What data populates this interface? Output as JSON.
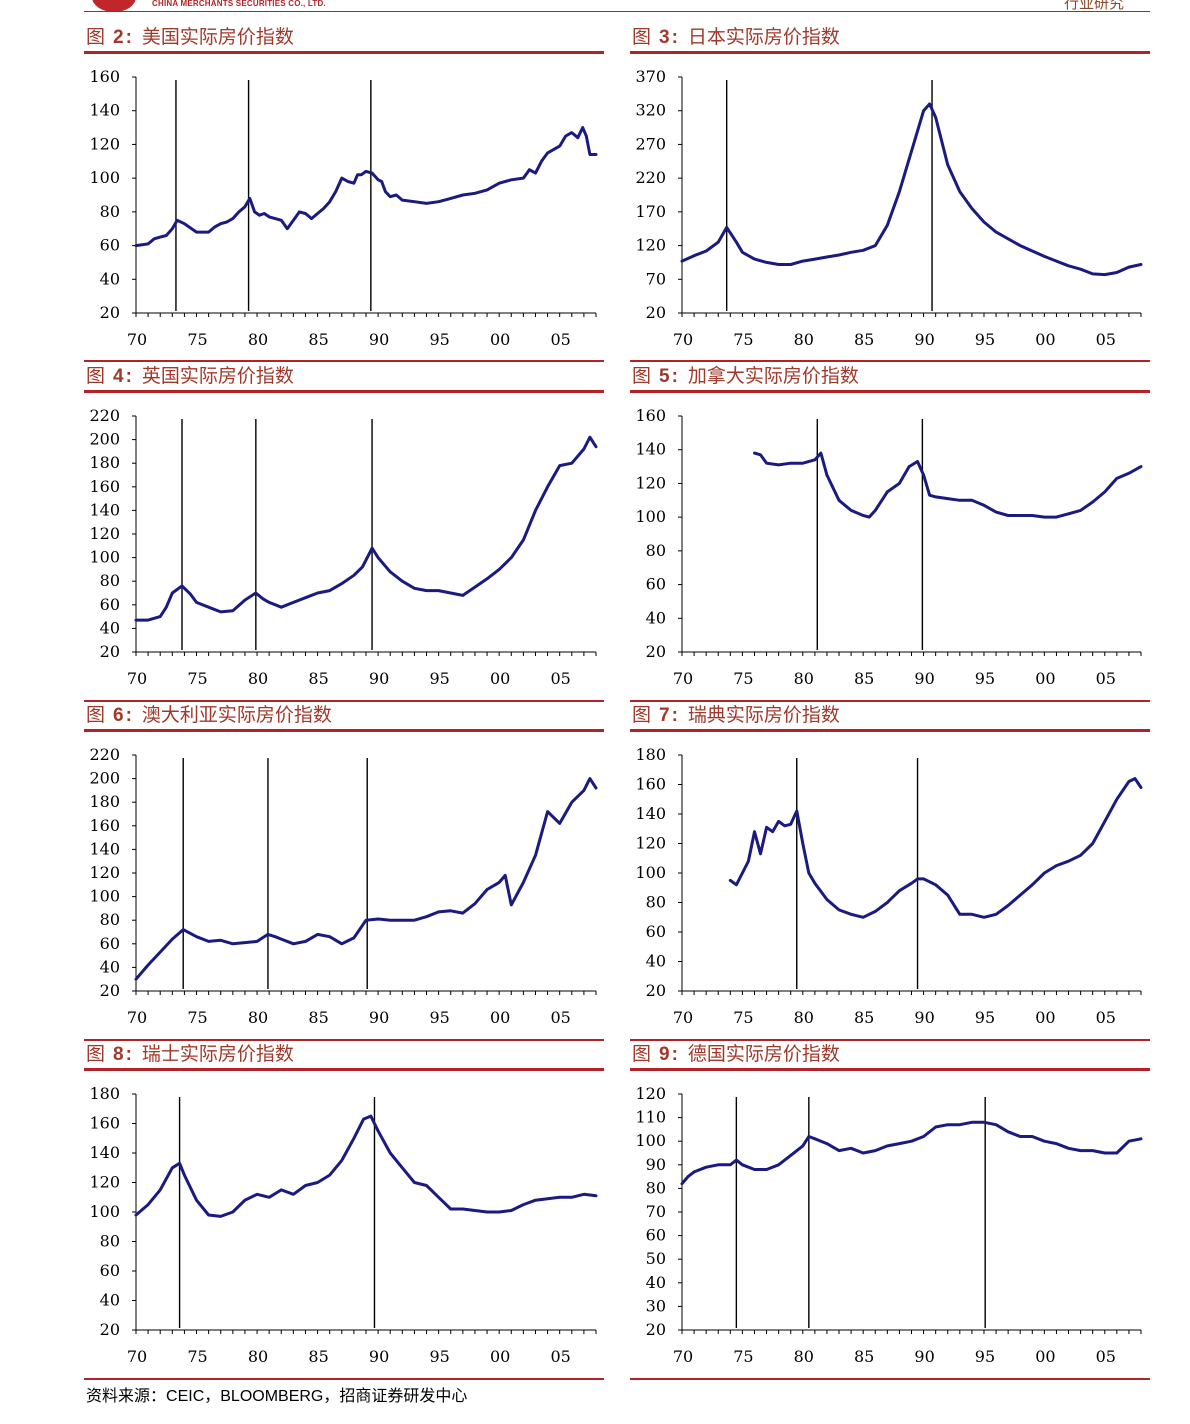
{
  "header": {
    "company": "CHINA MERCHANTS SECURITIES CO., LTD.",
    "section": "行业研究"
  },
  "source": {
    "label": "资料来源：",
    "text": "CEIC，BLOOMBERG，招商证券研发中心"
  },
  "colors": {
    "line": "#1a1a80",
    "accent": "#b22227",
    "title": "#a0392b"
  },
  "chart_data": [
    {
      "id": "us",
      "type": "line",
      "fig_prefix": "图",
      "fig_num": "2",
      "title": "美国实际房价指数",
      "ylim": [
        20,
        160
      ],
      "yticks": [
        20,
        40,
        60,
        80,
        100,
        120,
        140,
        160
      ],
      "xlim": [
        1970,
        2008
      ],
      "xticks": [
        1970,
        1975,
        1980,
        1985,
        1990,
        1995,
        2000,
        2005
      ],
      "xticklabels": [
        "70",
        "75",
        "80",
        "85",
        "90",
        "95",
        "00",
        "05"
      ],
      "vlines": [
        1973.3,
        1979.3,
        1989.4
      ],
      "series": [
        {
          "x": [
            1970,
            1971,
            1971.5,
            1972,
            1972.5,
            1973,
            1973.4,
            1974,
            1975,
            1976,
            1976.5,
            1977,
            1977.5,
            1978,
            1978.5,
            1979,
            1979.4,
            1979.8,
            1980.2,
            1980.6,
            1981,
            1981.5,
            1982,
            1982.5,
            1983,
            1983.5,
            1984,
            1984.5,
            1985,
            1985.5,
            1986,
            1986.5,
            1987,
            1987.5,
            1988,
            1988.3,
            1988.6,
            1989,
            1989.5,
            1990,
            1990.3,
            1990.6,
            1991,
            1991.5,
            1992,
            1993,
            1994,
            1995,
            1996,
            1997,
            1998,
            1999,
            2000,
            2001,
            2002,
            2002.5,
            2003,
            2003.5,
            2004,
            2005,
            2005.5,
            2006,
            2006.5,
            2006.9,
            2007.2,
            2007.5,
            2008
          ],
          "y": [
            60,
            61,
            64,
            65,
            66,
            70,
            75,
            73,
            68,
            68,
            71,
            73,
            74,
            76,
            80,
            83,
            88,
            80,
            78,
            79,
            77,
            76,
            75,
            70,
            75,
            80,
            79,
            76,
            79,
            82,
            86,
            92,
            100,
            98,
            97,
            102,
            102,
            104,
            103,
            99,
            98,
            92,
            89,
            90,
            87,
            86,
            85,
            86,
            88,
            90,
            91,
            93,
            97,
            99,
            100,
            105,
            103,
            110,
            115,
            119,
            125,
            127,
            124,
            130,
            125,
            114,
            114
          ]
        }
      ]
    },
    {
      "id": "jp",
      "type": "line",
      "fig_prefix": "图",
      "fig_num": "3",
      "title": "日本实际房价指数",
      "ylim": [
        20,
        370
      ],
      "yticks": [
        20,
        70,
        120,
        170,
        220,
        270,
        320,
        370
      ],
      "xlim": [
        1970,
        2008
      ],
      "xticks": [
        1970,
        1975,
        1980,
        1985,
        1990,
        1995,
        2000,
        2005
      ],
      "xticklabels": [
        "70",
        "75",
        "80",
        "85",
        "90",
        "95",
        "00",
        "05"
      ],
      "vlines": [
        1973.7,
        1990.7
      ],
      "series": [
        {
          "x": [
            1970,
            1971,
            1972,
            1973,
            1973.7,
            1974.5,
            1975,
            1976,
            1977,
            1978,
            1979,
            1980,
            1981,
            1982,
            1983,
            1984,
            1985,
            1986,
            1987,
            1988,
            1989,
            1990,
            1990.5,
            1991,
            1992,
            1993,
            1994,
            1995,
            1996,
            1997,
            1998,
            1999,
            2000,
            2001,
            2002,
            2003,
            2004,
            2005,
            2006,
            2007,
            2008
          ],
          "y": [
            97,
            105,
            112,
            125,
            147,
            125,
            110,
            100,
            95,
            92,
            92,
            97,
            100,
            103,
            106,
            110,
            113,
            120,
            150,
            200,
            260,
            320,
            330,
            310,
            240,
            200,
            175,
            155,
            140,
            130,
            120,
            112,
            104,
            97,
            90,
            85,
            78,
            77,
            80,
            88,
            92
          ]
        }
      ]
    },
    {
      "id": "uk",
      "type": "line",
      "fig_prefix": "图",
      "fig_num": "4",
      "title": "英国实际房价指数",
      "ylim": [
        20,
        220
      ],
      "yticks": [
        20,
        40,
        60,
        80,
        100,
        120,
        140,
        160,
        180,
        200,
        220
      ],
      "xlim": [
        1970,
        2008
      ],
      "xticks": [
        1970,
        1975,
        1980,
        1985,
        1990,
        1995,
        2000,
        2005
      ],
      "xticklabels": [
        "70",
        "75",
        "80",
        "85",
        "90",
        "95",
        "00",
        "05"
      ],
      "vlines": [
        1973.8,
        1979.9,
        1989.5
      ],
      "series": [
        {
          "x": [
            1970,
            1971,
            1972,
            1972.5,
            1973,
            1973.8,
            1974.5,
            1975,
            1976,
            1977,
            1978,
            1979,
            1979.9,
            1980.5,
            1981,
            1982,
            1983,
            1984,
            1985,
            1986,
            1987,
            1988,
            1988.7,
            1989.5,
            1990,
            1991,
            1992,
            1993,
            1994,
            1995,
            1996,
            1997,
            1998,
            1999,
            2000,
            2001,
            2002,
            2003,
            2004,
            2005,
            2006,
            2007,
            2007.5,
            2008
          ],
          "y": [
            47,
            47,
            50,
            58,
            70,
            76,
            69,
            62,
            58,
            54,
            55,
            64,
            70,
            65,
            62,
            58,
            62,
            66,
            70,
            72,
            78,
            85,
            92,
            108,
            100,
            88,
            80,
            74,
            72,
            72,
            70,
            68,
            75,
            82,
            90,
            100,
            115,
            140,
            160,
            178,
            180,
            192,
            202,
            194
          ]
        }
      ]
    },
    {
      "id": "ca",
      "type": "line",
      "fig_prefix": "图",
      "fig_num": "5",
      "title": "加拿大实际房价指数",
      "ylim": [
        20,
        160
      ],
      "yticks": [
        20,
        40,
        60,
        80,
        100,
        120,
        140,
        160
      ],
      "xlim": [
        1970,
        2008
      ],
      "xticks": [
        1970,
        1975,
        1980,
        1985,
        1990,
        1995,
        2000,
        2005
      ],
      "xticklabels": [
        "70",
        "75",
        "80",
        "85",
        "90",
        "95",
        "00",
        "05"
      ],
      "vlines": [
        1981.2,
        1989.9
      ],
      "series": [
        {
          "x": [
            1976,
            1976.5,
            1977,
            1978,
            1979,
            1980,
            1981,
            1981.5,
            1982,
            1983,
            1984,
            1985,
            1985.5,
            1986,
            1987,
            1988,
            1988.8,
            1989.5,
            1990,
            1990.5,
            1991,
            1992,
            1993,
            1994,
            1995,
            1996,
            1997,
            1998,
            1999,
            2000,
            2001,
            2002,
            2003,
            2004,
            2005,
            2006,
            2007,
            2008
          ],
          "y": [
            138,
            137,
            132,
            131,
            132,
            132,
            134,
            138,
            125,
            110,
            104,
            101,
            100,
            104,
            115,
            120,
            130,
            133,
            125,
            113,
            112,
            111,
            110,
            110,
            107,
            103,
            101,
            101,
            101,
            100,
            100,
            102,
            104,
            109,
            115,
            123,
            126,
            130
          ]
        }
      ]
    },
    {
      "id": "au",
      "type": "line",
      "fig_prefix": "图",
      "fig_num": "6",
      "title": "澳大利亚实际房价指数",
      "ylim": [
        20,
        220
      ],
      "yticks": [
        20,
        40,
        60,
        80,
        100,
        120,
        140,
        160,
        180,
        200,
        220
      ],
      "xlim": [
        1970,
        2008
      ],
      "xticks": [
        1970,
        1975,
        1980,
        1985,
        1990,
        1995,
        2000,
        2005
      ],
      "xticklabels": [
        "70",
        "75",
        "80",
        "85",
        "90",
        "95",
        "00",
        "05"
      ],
      "vlines": [
        1973.9,
        1980.9,
        1989.1
      ],
      "series": [
        {
          "x": [
            1970,
            1971,
            1972,
            1973,
            1973.9,
            1975,
            1976,
            1977,
            1978,
            1979,
            1980,
            1980.9,
            1981.5,
            1982,
            1983,
            1984,
            1985,
            1986,
            1987,
            1988,
            1989,
            1990,
            1991,
            1992,
            1993,
            1994,
            1995,
            1996,
            1997,
            1998,
            1999,
            2000,
            2000.5,
            2001,
            2002,
            2003,
            2004,
            2005,
            2006,
            2007,
            2007.5,
            2008
          ],
          "y": [
            30,
            42,
            53,
            64,
            72,
            66,
            62,
            63,
            60,
            61,
            62,
            68,
            66,
            64,
            60,
            62,
            68,
            66,
            60,
            65,
            80,
            81,
            80,
            80,
            80,
            83,
            87,
            88,
            86,
            94,
            106,
            112,
            118,
            93,
            112,
            135,
            172,
            162,
            180,
            190,
            200,
            192
          ]
        }
      ]
    },
    {
      "id": "se",
      "type": "line",
      "fig_prefix": "图",
      "fig_num": "7",
      "title": "瑞典实际房价指数",
      "ylim": [
        20,
        180
      ],
      "yticks": [
        20,
        40,
        60,
        80,
        100,
        120,
        140,
        160,
        180
      ],
      "xlim": [
        1970,
        2008
      ],
      "xticks": [
        1970,
        1975,
        1980,
        1985,
        1990,
        1995,
        2000,
        2005
      ],
      "xticklabels": [
        "70",
        "75",
        "80",
        "85",
        "90",
        "95",
        "00",
        "05"
      ],
      "vlines": [
        1979.5,
        1989.5
      ],
      "series": [
        {
          "x": [
            1974,
            1974.5,
            1975,
            1975.5,
            1976,
            1976.5,
            1977,
            1977.5,
            1978,
            1978.5,
            1979,
            1979.5,
            1980,
            1980.5,
            1981,
            1982,
            1983,
            1984,
            1985,
            1986,
            1987,
            1988,
            1989,
            1989.5,
            1990,
            1991,
            1992,
            1993,
            1994,
            1995,
            1996,
            1997,
            1998,
            1999,
            2000,
            2001,
            2002,
            2003,
            2004,
            2005,
            2006,
            2007,
            2007.5,
            2008
          ],
          "y": [
            95,
            92,
            100,
            108,
            128,
            113,
            131,
            128,
            135,
            132,
            133,
            142,
            120,
            100,
            93,
            82,
            75,
            72,
            70,
            74,
            80,
            88,
            93,
            96,
            96,
            92,
            85,
            72,
            72,
            70,
            72,
            78,
            85,
            92,
            100,
            105,
            108,
            112,
            120,
            135,
            150,
            162,
            164,
            158
          ]
        }
      ]
    },
    {
      "id": "ch",
      "type": "line",
      "fig_prefix": "图",
      "fig_num": "8",
      "title": "瑞士实际房价指数",
      "ylim": [
        20,
        180
      ],
      "yticks": [
        20,
        40,
        60,
        80,
        100,
        120,
        140,
        160,
        180
      ],
      "xlim": [
        1970,
        2008
      ],
      "xticks": [
        1970,
        1975,
        1980,
        1985,
        1990,
        1995,
        2000,
        2005
      ],
      "xticklabels": [
        "70",
        "75",
        "80",
        "85",
        "90",
        "95",
        "00",
        "05"
      ],
      "vlines": [
        1973.6,
        1989.7
      ],
      "series": [
        {
          "x": [
            1970,
            1971,
            1972,
            1973,
            1973.6,
            1974,
            1975,
            1976,
            1977,
            1978,
            1979,
            1980,
            1981,
            1982,
            1983,
            1984,
            1985,
            1986,
            1987,
            1988,
            1988.8,
            1989.4,
            1990,
            1991,
            1992,
            1993,
            1994,
            1995,
            1996,
            1997,
            1998,
            1999,
            2000,
            2001,
            2002,
            2003,
            2004,
            2005,
            2006,
            2007,
            2008
          ],
          "y": [
            98,
            105,
            115,
            130,
            133,
            125,
            108,
            98,
            97,
            100,
            108,
            112,
            110,
            115,
            112,
            118,
            120,
            125,
            135,
            150,
            163,
            165,
            155,
            140,
            130,
            120,
            118,
            110,
            102,
            102,
            101,
            100,
            100,
            101,
            105,
            108,
            109,
            110,
            110,
            112,
            111
          ]
        }
      ]
    },
    {
      "id": "de",
      "type": "line",
      "fig_prefix": "图",
      "fig_num": "9",
      "title": "德国实际房价指数",
      "ylim": [
        20,
        120
      ],
      "yticks": [
        20,
        30,
        40,
        50,
        60,
        70,
        80,
        90,
        100,
        110,
        120
      ],
      "xlim": [
        1970,
        2008
      ],
      "xticks": [
        1970,
        1975,
        1980,
        1985,
        1990,
        1995,
        2000,
        2005
      ],
      "xticklabels": [
        "70",
        "75",
        "80",
        "85",
        "90",
        "95",
        "00",
        "05"
      ],
      "vlines": [
        1974.5,
        1980.5,
        1995.1
      ],
      "series": [
        {
          "x": [
            1970,
            1970.5,
            1971,
            1972,
            1973,
            1974,
            1974.5,
            1975,
            1976,
            1977,
            1978,
            1979,
            1980,
            1980.5,
            1981,
            1982,
            1983,
            1984,
            1985,
            1986,
            1987,
            1988,
            1989,
            1990,
            1991,
            1992,
            1993,
            1994,
            1995,
            1996,
            1997,
            1998,
            1999,
            2000,
            2001,
            2002,
            2003,
            2004,
            2005,
            2006,
            2007,
            2008
          ],
          "y": [
            82,
            85,
            87,
            89,
            90,
            90,
            92,
            90,
            88,
            88,
            90,
            94,
            98,
            102,
            101,
            99,
            96,
            97,
            95,
            96,
            98,
            99,
            100,
            102,
            106,
            107,
            107,
            108,
            108,
            107,
            104,
            102,
            102,
            100,
            99,
            97,
            96,
            96,
            95,
            95,
            100,
            101
          ]
        }
      ]
    }
  ]
}
